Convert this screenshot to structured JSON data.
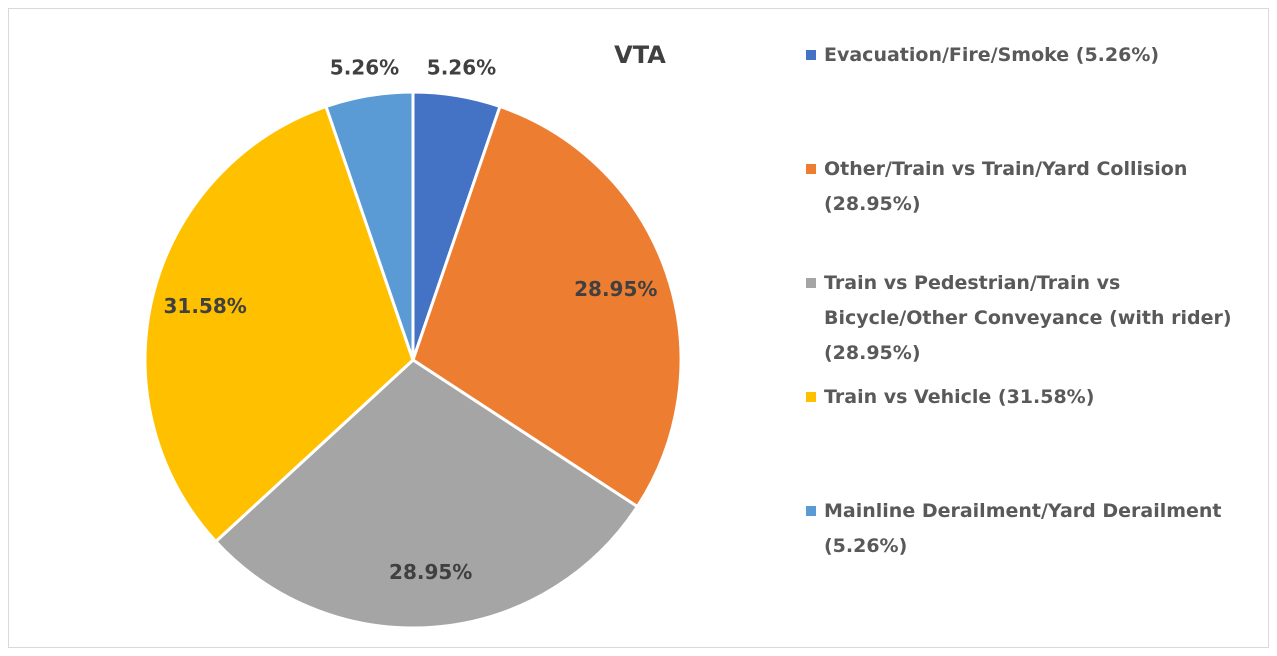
{
  "chart_data": {
    "type": "pie",
    "title": "VTA",
    "categories": [
      "Evacuation/Fire/Smoke (5.26%)",
      "Other/Train vs Train/Yard Collision (28.95%)",
      "Train vs Pedestrian/Train vs Bicycle/Other Conveyance (with rider) (28.95%)",
      "Train vs Vehicle (31.58%)",
      "Mainline Derailment/Yard Derailment (5.26%)"
    ],
    "values": [
      5.26,
      28.95,
      28.95,
      31.58,
      5.26
    ],
    "value_labels": [
      "5.26%",
      "28.95%",
      "28.95%",
      "31.58%",
      "5.26%"
    ],
    "colors": [
      "#4472c4",
      "#ed7d31",
      "#a5a5a5",
      "#ffc000",
      "#5b9bd5"
    ],
    "legend": "right"
  }
}
